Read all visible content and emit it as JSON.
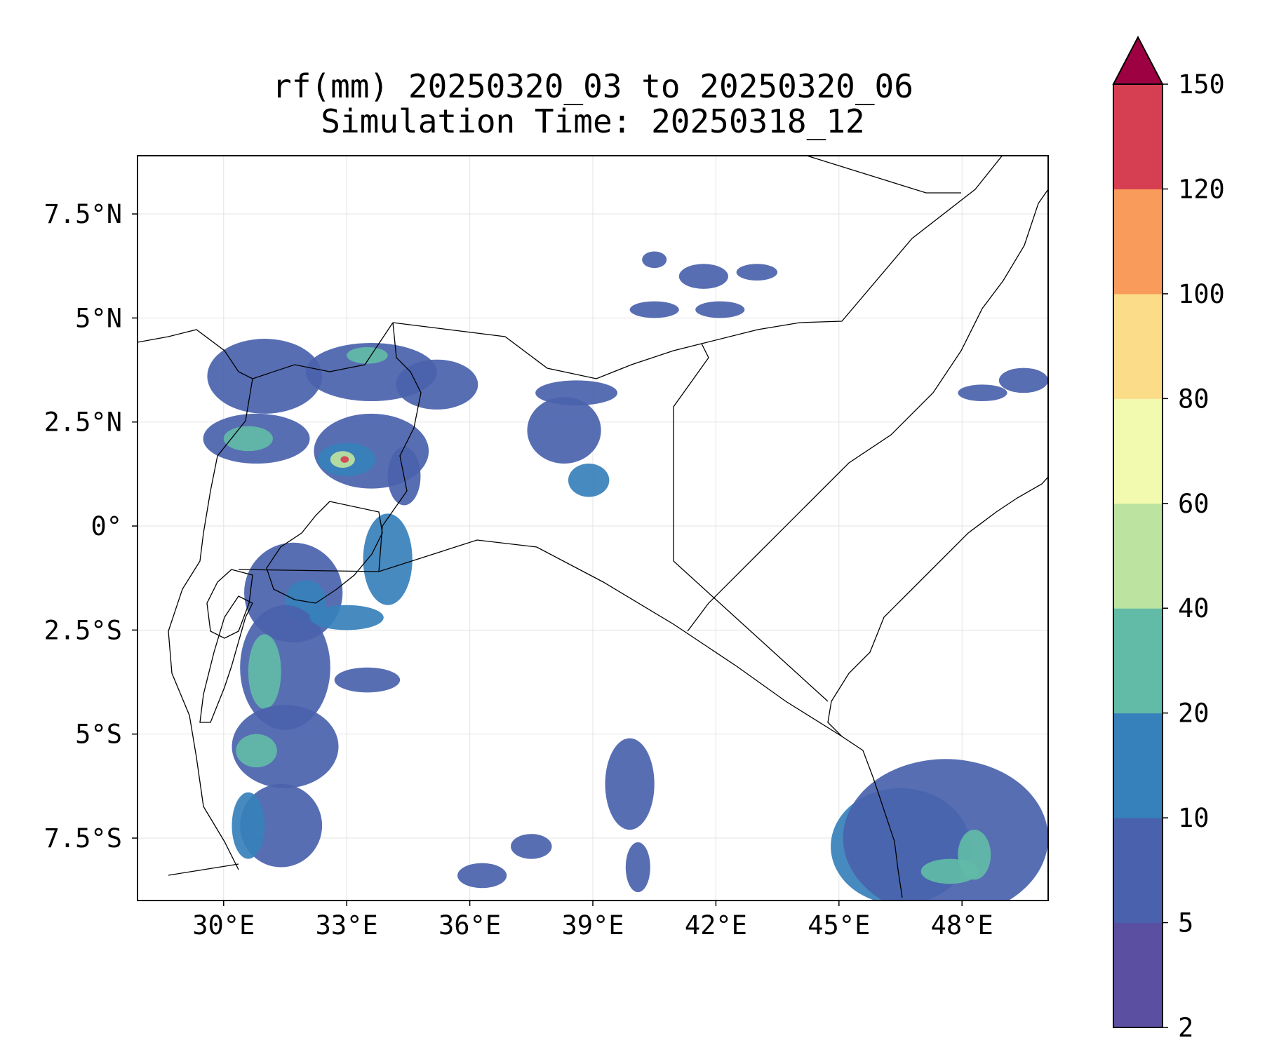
{
  "title": {
    "line1": "rf(mm) 20250320_03 to 20250320_06",
    "line2": "Simulation Time: 20250318_12"
  },
  "map": {
    "lon_range": [
      27.9,
      50.1
    ],
    "lat_range": [
      -9.0,
      8.9
    ],
    "lon_ticks": [
      "30°E",
      "33°E",
      "36°E",
      "39°E",
      "42°E",
      "45°E",
      "48°E"
    ],
    "lat_ticks": [
      "7.5°N",
      "5°N",
      "2.5°N",
      "0°",
      "2.5°S",
      "5°S",
      "7.5°S"
    ],
    "grid": true
  },
  "colorbar": {
    "levels": [
      "2",
      "5",
      "10",
      "20",
      "40",
      "60",
      "80",
      "100",
      "120",
      "150"
    ],
    "colors": [
      "#5a4fa1",
      "#4a62ad",
      "#3680bb",
      "#62bba7",
      "#bde3a0",
      "#f2faaf",
      "#fbdc89",
      "#f99b5a",
      "#d63f51",
      "#9e0142"
    ],
    "extend": "max"
  },
  "rain_cells": [
    {
      "lon": 31.0,
      "lat": 3.6,
      "rx": 1.4,
      "ry": 0.9,
      "level": 1
    },
    {
      "lon": 30.8,
      "lat": 2.1,
      "rx": 1.3,
      "ry": 0.6,
      "level": 1
    },
    {
      "lon": 30.6,
      "lat": 2.1,
      "rx": 0.6,
      "ry": 0.3,
      "level": 3
    },
    {
      "lon": 33.6,
      "lat": 1.8,
      "rx": 1.4,
      "ry": 0.9,
      "level": 1
    },
    {
      "lon": 33.0,
      "lat": 1.6,
      "rx": 0.7,
      "ry": 0.4,
      "level": 2
    },
    {
      "lon": 32.9,
      "lat": 1.6,
      "rx": 0.3,
      "ry": 0.2,
      "level": 4
    },
    {
      "lon": 32.95,
      "lat": 1.6,
      "rx": 0.1,
      "ry": 0.08,
      "level": 8
    },
    {
      "lon": 33.6,
      "lat": 3.7,
      "rx": 1.6,
      "ry": 0.7,
      "level": 1
    },
    {
      "lon": 33.5,
      "lat": 4.1,
      "rx": 0.5,
      "ry": 0.2,
      "level": 3
    },
    {
      "lon": 35.2,
      "lat": 3.4,
      "rx": 1.0,
      "ry": 0.6,
      "level": 1
    },
    {
      "lon": 34.4,
      "lat": 1.2,
      "rx": 0.4,
      "ry": 0.7,
      "level": 1
    },
    {
      "lon": 34.0,
      "lat": -0.8,
      "rx": 0.6,
      "ry": 1.1,
      "level": 2
    },
    {
      "lon": 31.7,
      "lat": -1.6,
      "rx": 1.2,
      "ry": 1.2,
      "level": 1
    },
    {
      "lon": 32.0,
      "lat": -1.8,
      "rx": 0.5,
      "ry": 0.5,
      "level": 2
    },
    {
      "lon": 31.5,
      "lat": -3.4,
      "rx": 1.1,
      "ry": 1.5,
      "level": 1
    },
    {
      "lon": 31.0,
      "lat": -3.5,
      "rx": 0.4,
      "ry": 0.9,
      "level": 3
    },
    {
      "lon": 31.5,
      "lat": -5.3,
      "rx": 1.3,
      "ry": 1.0,
      "level": 1
    },
    {
      "lon": 30.8,
      "lat": -5.4,
      "rx": 0.5,
      "ry": 0.4,
      "level": 3
    },
    {
      "lon": 31.4,
      "lat": -7.2,
      "rx": 1.0,
      "ry": 1.0,
      "level": 1
    },
    {
      "lon": 30.6,
      "lat": -7.2,
      "rx": 0.4,
      "ry": 0.8,
      "level": 2
    },
    {
      "lon": 33.5,
      "lat": -3.7,
      "rx": 0.8,
      "ry": 0.3,
      "level": 1
    },
    {
      "lon": 33.0,
      "lat": -2.2,
      "rx": 0.9,
      "ry": 0.3,
      "level": 2
    },
    {
      "lon": 38.3,
      "lat": 2.3,
      "rx": 0.9,
      "ry": 0.8,
      "level": 1
    },
    {
      "lon": 38.9,
      "lat": 1.1,
      "rx": 0.5,
      "ry": 0.4,
      "level": 2
    },
    {
      "lon": 38.6,
      "lat": 3.2,
      "rx": 1.0,
      "ry": 0.3,
      "level": 1
    },
    {
      "lon": 40.5,
      "lat": 6.4,
      "rx": 0.3,
      "ry": 0.2,
      "level": 1
    },
    {
      "lon": 41.7,
      "lat": 6.0,
      "rx": 0.6,
      "ry": 0.3,
      "level": 1
    },
    {
      "lon": 43.0,
      "lat": 6.1,
      "rx": 0.5,
      "ry": 0.2,
      "level": 1
    },
    {
      "lon": 42.1,
      "lat": 5.2,
      "rx": 0.6,
      "ry": 0.2,
      "level": 1
    },
    {
      "lon": 40.5,
      "lat": 5.2,
      "rx": 0.6,
      "ry": 0.2,
      "level": 1
    },
    {
      "lon": 39.9,
      "lat": -6.2,
      "rx": 0.6,
      "ry": 1.1,
      "level": 1
    },
    {
      "lon": 40.1,
      "lat": -8.2,
      "rx": 0.3,
      "ry": 0.6,
      "level": 1
    },
    {
      "lon": 36.3,
      "lat": -8.4,
      "rx": 0.6,
      "ry": 0.3,
      "level": 1
    },
    {
      "lon": 37.5,
      "lat": -7.7,
      "rx": 0.5,
      "ry": 0.3,
      "level": 1
    },
    {
      "lon": 48.5,
      "lat": 3.2,
      "rx": 0.6,
      "ry": 0.2,
      "level": 1
    },
    {
      "lon": 49.5,
      "lat": 3.5,
      "rx": 0.6,
      "ry": 0.3,
      "level": 1
    },
    {
      "lon": 46.5,
      "lat": -7.7,
      "rx": 1.7,
      "ry": 1.4,
      "level": 2
    },
    {
      "lon": 47.6,
      "lat": -7.5,
      "rx": 2.5,
      "ry": 1.9,
      "level": 1
    },
    {
      "lon": 47.7,
      "lat": -8.3,
      "rx": 0.7,
      "ry": 0.3,
      "level": 3
    },
    {
      "lon": 48.3,
      "lat": -7.9,
      "rx": 0.4,
      "ry": 0.6,
      "level": 3
    }
  ]
}
